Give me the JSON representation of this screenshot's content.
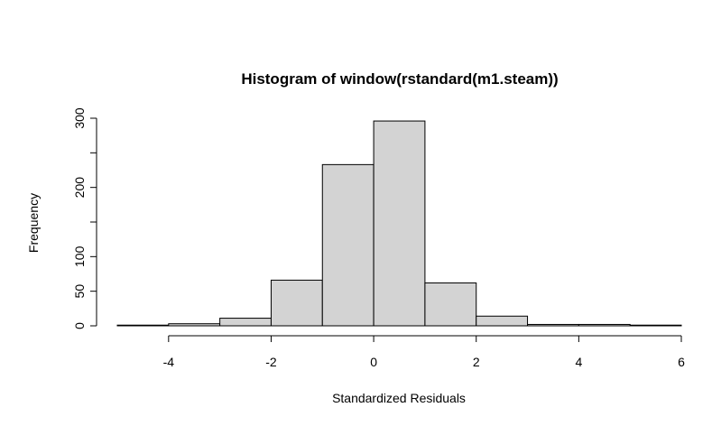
{
  "chart_data": {
    "type": "bar",
    "title": "Histogram of window(rstandard(m1.steam))",
    "xlabel": "Standardized Residuals",
    "ylabel": "Frequency",
    "bins": [
      {
        "x0": -5,
        "x1": -4,
        "count": 1
      },
      {
        "x0": -4,
        "x1": -3,
        "count": 3
      },
      {
        "x0": -3,
        "x1": -2,
        "count": 11
      },
      {
        "x0": -2,
        "x1": -1,
        "count": 66
      },
      {
        "x0": -1,
        "x1": 0,
        "count": 233
      },
      {
        "x0": 0,
        "x1": 1,
        "count": 296
      },
      {
        "x0": 1,
        "x1": 2,
        "count": 62
      },
      {
        "x0": 2,
        "x1": 3,
        "count": 14
      },
      {
        "x0": 3,
        "x1": 4,
        "count": 2
      },
      {
        "x0": 4,
        "x1": 5,
        "count": 2
      },
      {
        "x0": 5,
        "x1": 6,
        "count": 1
      }
    ],
    "xlim": [
      -5,
      6
    ],
    "ylim": [
      0,
      300
    ],
    "x_ticks": [
      -4,
      -2,
      0,
      2,
      4,
      6
    ],
    "y_ticks": [
      0,
      50,
      100,
      200,
      300
    ],
    "x_tick_labels": [
      "-4",
      "-2",
      "0",
      "2",
      "4",
      "6"
    ],
    "y_tick_labels": [
      "0",
      "50",
      "100",
      "200",
      "300"
    ],
    "bar_fill": "#d3d3d3",
    "bar_stroke": "#000000",
    "grid": false
  }
}
